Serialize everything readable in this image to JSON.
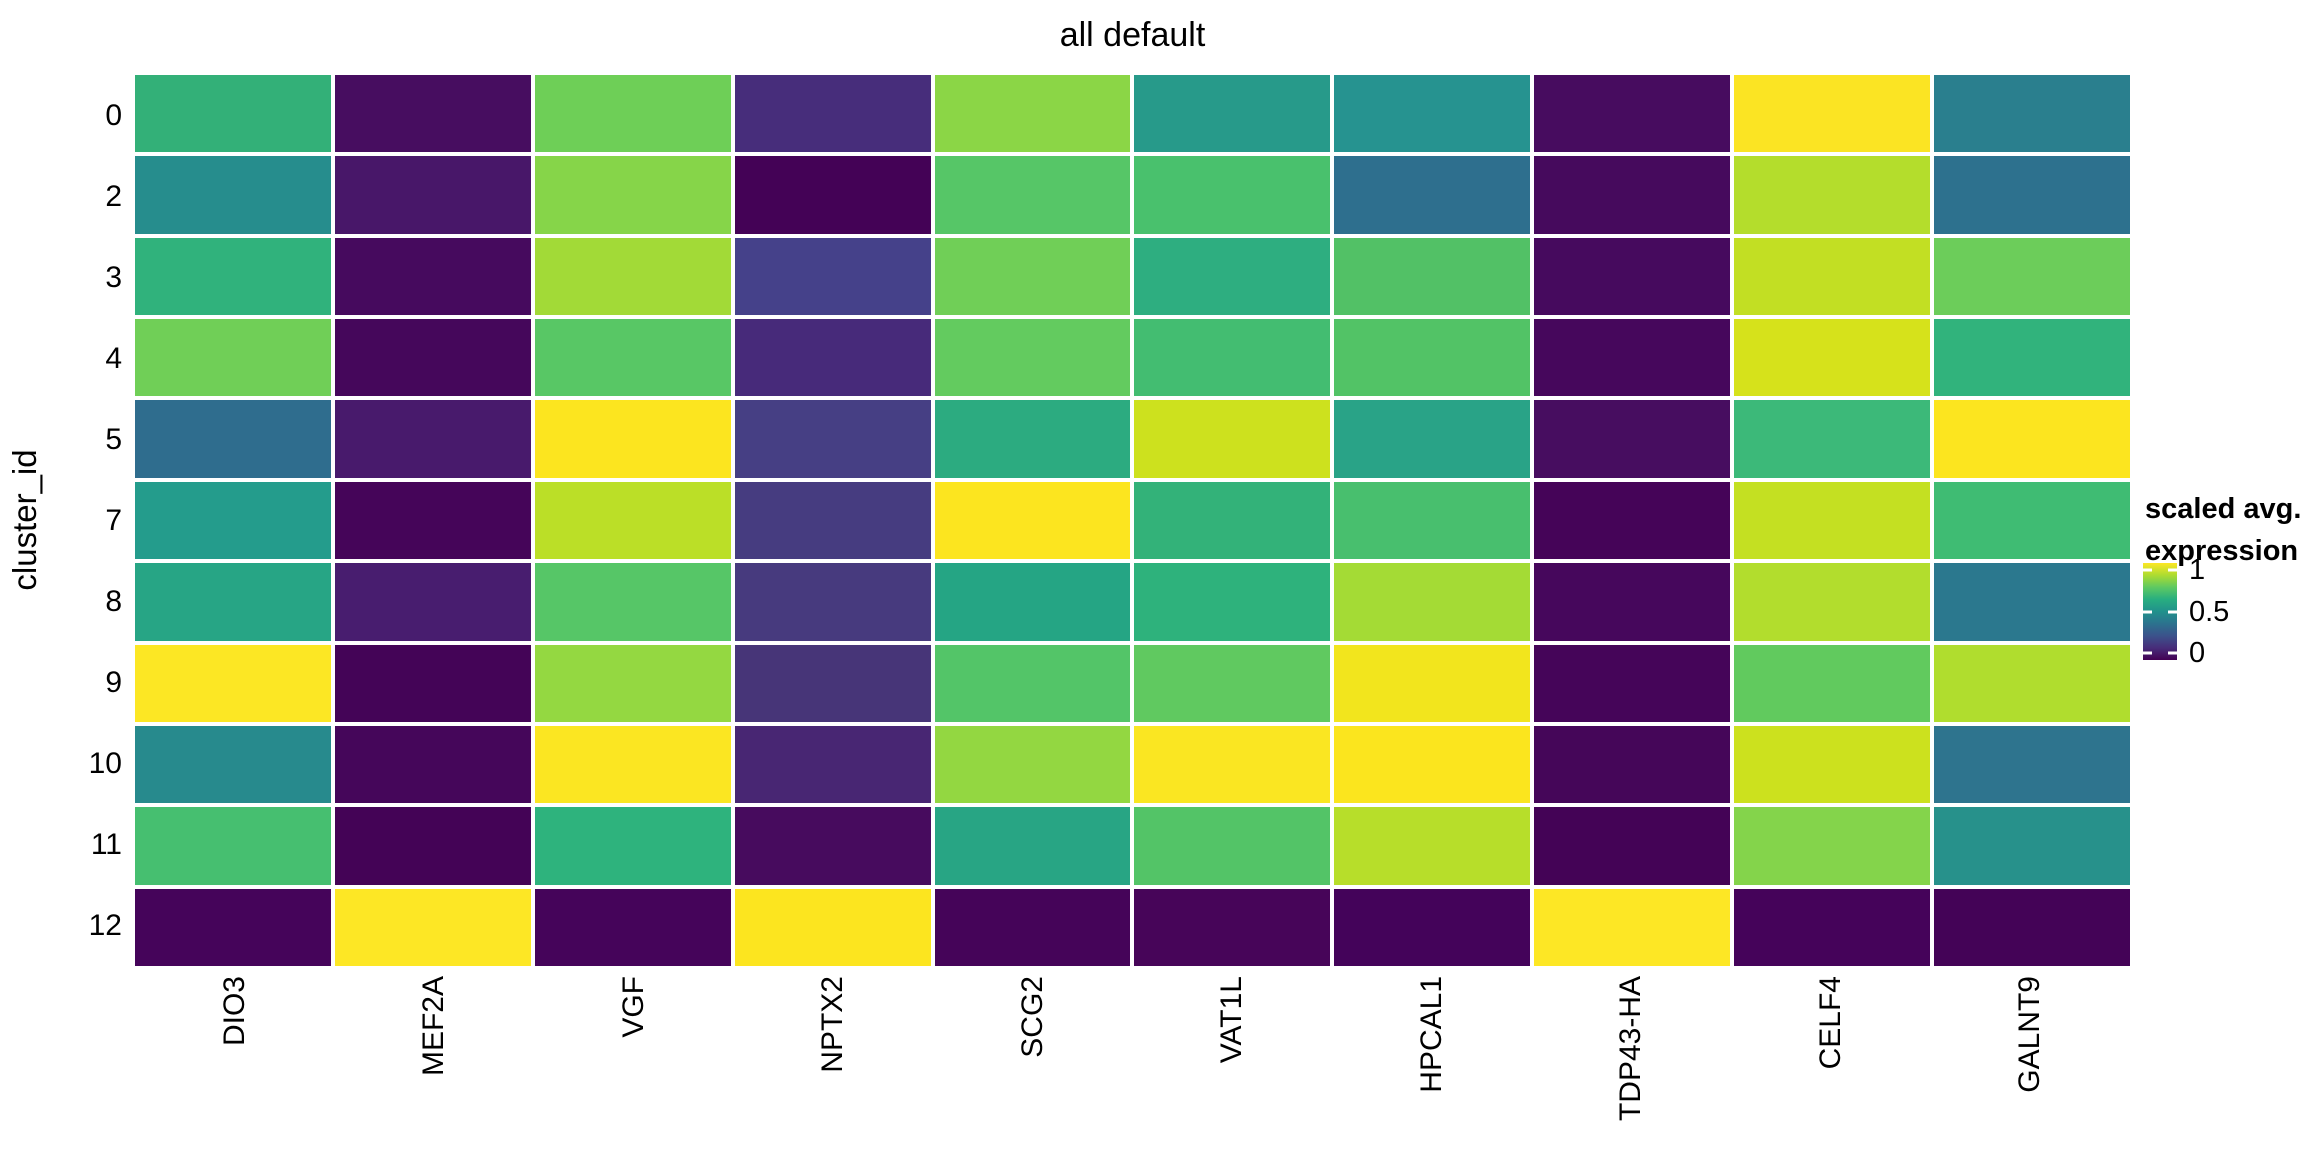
{
  "title": "all default",
  "axes": {
    "y_title": "cluster_id",
    "x_labels": [
      "DIO3",
      "MEF2A",
      "VGF",
      "NPTX2",
      "SCG2",
      "VAT1L",
      "HPCAL1",
      "TDP43-HA",
      "CELF4",
      "GALNT9"
    ],
    "y_labels": [
      "0",
      "2",
      "3",
      "4",
      "5",
      "7",
      "8",
      "9",
      "10",
      "11",
      "12"
    ]
  },
  "legend": {
    "title_line1": "scaled avg.",
    "title_line2": "expression",
    "ticks": [
      {
        "label": "1",
        "pos": 0.07
      },
      {
        "label": "0.5",
        "pos": 0.505
      },
      {
        "label": "0",
        "pos": 0.93
      }
    ],
    "gradient": [
      "#fde725",
      "#addc30",
      "#5ec962",
      "#28ae80",
      "#21918c",
      "#2c728e",
      "#3b528b",
      "#472d7a",
      "#440154"
    ]
  },
  "chart_data": {
    "type": "heatmap",
    "title": "all default",
    "xlabel": "",
    "ylabel": "cluster_id",
    "legend_label": "scaled avg. expression",
    "colorscale": "viridis",
    "value_domain": [
      0,
      1
    ],
    "x": [
      "DIO3",
      "MEF2A",
      "VGF",
      "NPTX2",
      "SCG2",
      "VAT1L",
      "HPCAL1",
      "TDP43-HA",
      "CELF4",
      "GALNT9"
    ],
    "y": [
      "0",
      "2",
      "3",
      "4",
      "5",
      "7",
      "8",
      "9",
      "10",
      "11",
      "12"
    ],
    "values": [
      [
        0.64,
        0.06,
        0.77,
        0.15,
        0.81,
        0.55,
        0.51,
        0.06,
        0.99,
        0.44
      ],
      [
        0.49,
        0.09,
        0.81,
        0.01,
        0.72,
        0.7,
        0.39,
        0.05,
        0.88,
        0.4
      ],
      [
        0.63,
        0.05,
        0.85,
        0.23,
        0.77,
        0.61,
        0.71,
        0.05,
        0.9,
        0.76
      ],
      [
        0.77,
        0.04,
        0.73,
        0.14,
        0.75,
        0.68,
        0.71,
        0.04,
        0.94,
        0.64
      ],
      [
        0.38,
        0.1,
        1.0,
        0.22,
        0.6,
        0.92,
        0.57,
        0.06,
        0.66,
        1.0
      ],
      [
        0.55,
        0.02,
        0.89,
        0.21,
        1.0,
        0.64,
        0.69,
        0.02,
        0.91,
        0.67
      ],
      [
        0.58,
        0.11,
        0.72,
        0.2,
        0.58,
        0.63,
        0.86,
        0.04,
        0.88,
        0.42
      ],
      [
        1.0,
        0.02,
        0.83,
        0.18,
        0.72,
        0.74,
        0.98,
        0.02,
        0.74,
        0.87
      ],
      [
        0.48,
        0.03,
        0.99,
        0.13,
        0.83,
        0.99,
        0.99,
        0.03,
        0.92,
        0.41
      ],
      [
        0.69,
        0.01,
        0.64,
        0.05,
        0.58,
        0.72,
        0.88,
        0.01,
        0.8,
        0.52
      ],
      [
        0.02,
        1.0,
        0.02,
        1.0,
        0.02,
        0.02,
        0.01,
        1.0,
        0.01,
        0.01
      ]
    ],
    "cell_colors": [
      [
        "#33b078",
        "#470d60",
        "#6ecf57",
        "#472d7b",
        "#8bd646",
        "#279a8a",
        "#269390",
        "#470c5f",
        "#fbe423",
        "#2a7f8e"
      ],
      [
        "#268d8d",
        "#481769",
        "#86d549",
        "#440256",
        "#56c667",
        "#49c16d",
        "#2e6f8e",
        "#460a5d",
        "#b4dd2c",
        "#2d718e"
      ],
      [
        "#30b27c",
        "#460a5e",
        "#a2da37",
        "#45418a",
        "#70cf57",
        "#2eae80",
        "#52c166",
        "#460a5e",
        "#c2df23",
        "#6ccd5a"
      ],
      [
        "#70cf57",
        "#45075b",
        "#58c765",
        "#472a7a",
        "#63cb5f",
        "#43bd71",
        "#52c366",
        "#46075c",
        "#d6e21b",
        "#31b37c"
      ],
      [
        "#2f6d8e",
        "#481a6c",
        "#fce51f",
        "#463f84",
        "#2cab80",
        "#cde11e",
        "#29a387",
        "#470d60",
        "#3cb979",
        "#fce51f"
      ],
      [
        "#249c8c",
        "#450559",
        "#bbdf27",
        "#463c80",
        "#fce51f",
        "#33b279",
        "#48bf6e",
        "#450458",
        "#c4e022",
        "#3fbc73"
      ],
      [
        "#27a585",
        "#481d6f",
        "#56c667",
        "#473a7e",
        "#25a584",
        "#2eb27c",
        "#a4db35",
        "#46075c",
        "#b2dd2d",
        "#2b788e"
      ],
      [
        "#fce724",
        "#440457",
        "#94d841",
        "#473578",
        "#53c568",
        "#60c960",
        "#f2e51d",
        "#450559",
        "#61ca5e",
        "#b0dd2e"
      ],
      [
        "#278a8d",
        "#45065a",
        "#fbe622",
        "#482673",
        "#93d741",
        "#fae622",
        "#fbe51e",
        "#450659",
        "#cce11e",
        "#2e748e"
      ],
      [
        "#46bf70",
        "#440356",
        "#2eb37d",
        "#470b5e",
        "#28a584",
        "#53c467",
        "#b7de2a",
        "#440356",
        "#84d44b",
        "#27918b"
      ],
      [
        "#45045a",
        "#fde725",
        "#45045a",
        "#fce51f",
        "#450459",
        "#470559",
        "#44035a",
        "#fde725",
        "#45035a",
        "#440357"
      ]
    ]
  }
}
